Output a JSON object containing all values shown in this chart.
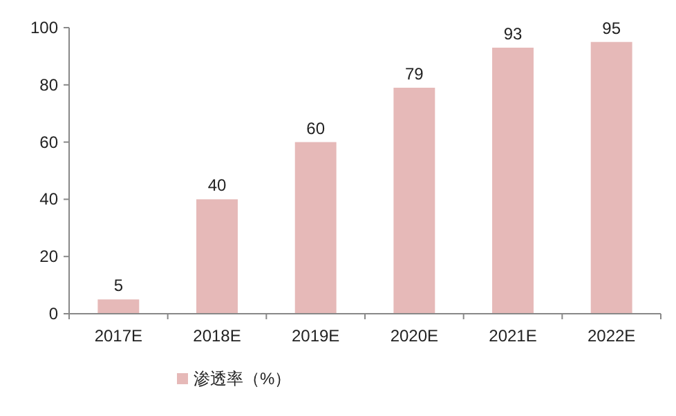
{
  "chart_data": {
    "type": "bar",
    "categories": [
      "2017E",
      "2018E",
      "2019E",
      "2020E",
      "2021E",
      "2022E"
    ],
    "series": [
      {
        "name": "渗透率（%）",
        "color": "#e6b9b8",
        "values": [
          5,
          40,
          60,
          79,
          93,
          95
        ]
      }
    ],
    "ylim": [
      0,
      100
    ],
    "yticks": [
      0,
      20,
      40,
      60,
      80,
      100
    ],
    "data_labels": true,
    "legend": "bottom"
  }
}
